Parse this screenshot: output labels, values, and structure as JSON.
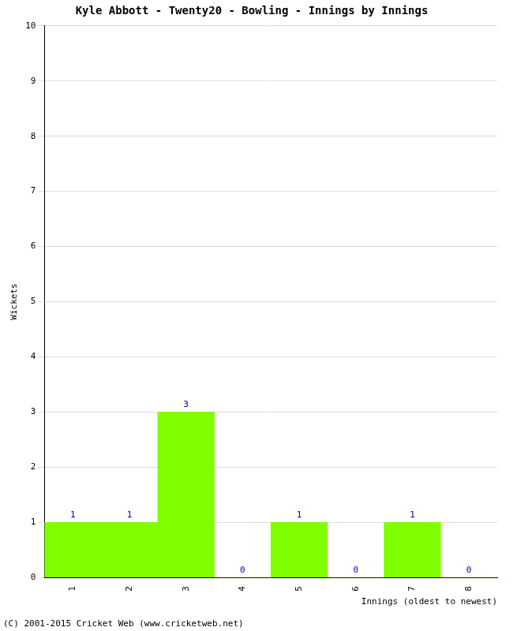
{
  "chart_data": {
    "type": "bar",
    "title": "Kyle Abbott - Twenty20 - Bowling - Innings by Innings",
    "x_label": "Innings (oldest to newest)",
    "y_label": "Wickets",
    "categories": [
      "1",
      "2",
      "3",
      "4",
      "5",
      "6",
      "7",
      "8"
    ],
    "values": [
      1,
      1,
      3,
      0,
      1,
      0,
      1,
      0
    ],
    "color": "#80ff00",
    "ylim": [
      0,
      10
    ],
    "yticks": [
      0,
      1,
      2,
      3,
      4,
      5,
      6,
      7,
      8,
      9,
      10
    ],
    "grid": true,
    "data_labels": true,
    "annotations": [
      "(C) 2001-2015 Cricket Web (www.cricketweb.net)"
    ]
  }
}
